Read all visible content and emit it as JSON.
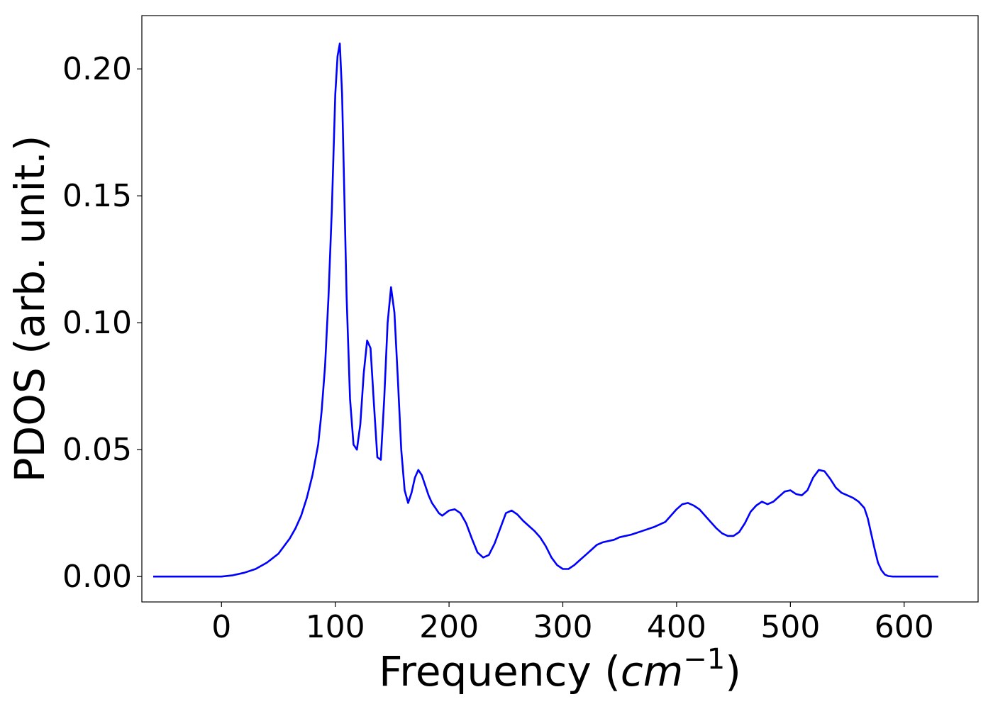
{
  "chart_data": {
    "type": "line",
    "title": "",
    "xlabel": "Frequency",
    "xlabel_unit_base": "cm",
    "xlabel_unit_exp": "−1",
    "ylabel": "PDOS (arb. unit.)",
    "xlim": [
      -70,
      665
    ],
    "ylim": [
      -0.01,
      0.221
    ],
    "xticks": [
      0,
      100,
      200,
      300,
      400,
      500,
      600
    ],
    "yticks": [
      0.0,
      0.05,
      0.1,
      0.15,
      0.2
    ],
    "ytick_labels": [
      "0.00",
      "0.05",
      "0.10",
      "0.15",
      "0.20"
    ],
    "grid": false,
    "legend": "none",
    "series": [
      {
        "color": "#0000ff",
        "x": [
          -60,
          -40,
          -20,
          0,
          10,
          20,
          30,
          40,
          50,
          60,
          65,
          70,
          75,
          80,
          85,
          88,
          91,
          94,
          97,
          100,
          102,
          104,
          106,
          108,
          110,
          113,
          116,
          119,
          122,
          125,
          128,
          131,
          134,
          137,
          140,
          143,
          146,
          149,
          152,
          155,
          158,
          161,
          164,
          167,
          170,
          173,
          176,
          179,
          182,
          185,
          188,
          191,
          194,
          197,
          200,
          205,
          210,
          215,
          220,
          225,
          230,
          235,
          240,
          245,
          250,
          255,
          260,
          265,
          270,
          275,
          280,
          285,
          290,
          295,
          300,
          305,
          310,
          315,
          320,
          325,
          330,
          335,
          340,
          345,
          350,
          360,
          370,
          380,
          390,
          395,
          400,
          405,
          410,
          415,
          420,
          425,
          430,
          435,
          440,
          445,
          450,
          455,
          460,
          465,
          470,
          475,
          480,
          485,
          490,
          495,
          500,
          505,
          510,
          515,
          520,
          525,
          530,
          535,
          540,
          545,
          550,
          555,
          560,
          565,
          568,
          571,
          574,
          577,
          580,
          583,
          586,
          590,
          600,
          630
        ],
        "y": [
          0.0,
          0.0,
          0.0,
          0.0,
          0.0005,
          0.0015,
          0.003,
          0.0055,
          0.009,
          0.015,
          0.019,
          0.024,
          0.031,
          0.04,
          0.052,
          0.065,
          0.083,
          0.11,
          0.145,
          0.19,
          0.205,
          0.21,
          0.19,
          0.15,
          0.11,
          0.07,
          0.052,
          0.05,
          0.06,
          0.08,
          0.093,
          0.09,
          0.068,
          0.047,
          0.046,
          0.07,
          0.1,
          0.114,
          0.104,
          0.078,
          0.05,
          0.034,
          0.029,
          0.033,
          0.039,
          0.042,
          0.04,
          0.036,
          0.032,
          0.029,
          0.027,
          0.025,
          0.024,
          0.025,
          0.026,
          0.0265,
          0.025,
          0.021,
          0.015,
          0.0095,
          0.0075,
          0.0085,
          0.013,
          0.019,
          0.025,
          0.026,
          0.0245,
          0.022,
          0.02,
          0.018,
          0.0155,
          0.012,
          0.0075,
          0.0045,
          0.003,
          0.003,
          0.0045,
          0.0065,
          0.0085,
          0.0105,
          0.0125,
          0.0135,
          0.014,
          0.0145,
          0.0155,
          0.0165,
          0.018,
          0.0195,
          0.0215,
          0.024,
          0.0265,
          0.0285,
          0.029,
          0.028,
          0.0265,
          0.024,
          0.0215,
          0.019,
          0.017,
          0.016,
          0.016,
          0.0175,
          0.021,
          0.0255,
          0.028,
          0.0295,
          0.0285,
          0.0295,
          0.0315,
          0.0335,
          0.034,
          0.0325,
          0.032,
          0.034,
          0.039,
          0.042,
          0.0415,
          0.0385,
          0.035,
          0.033,
          0.032,
          0.031,
          0.0295,
          0.027,
          0.023,
          0.017,
          0.011,
          0.0055,
          0.0025,
          0.0008,
          0.0002,
          0.0,
          0.0,
          0.0
        ]
      }
    ]
  }
}
